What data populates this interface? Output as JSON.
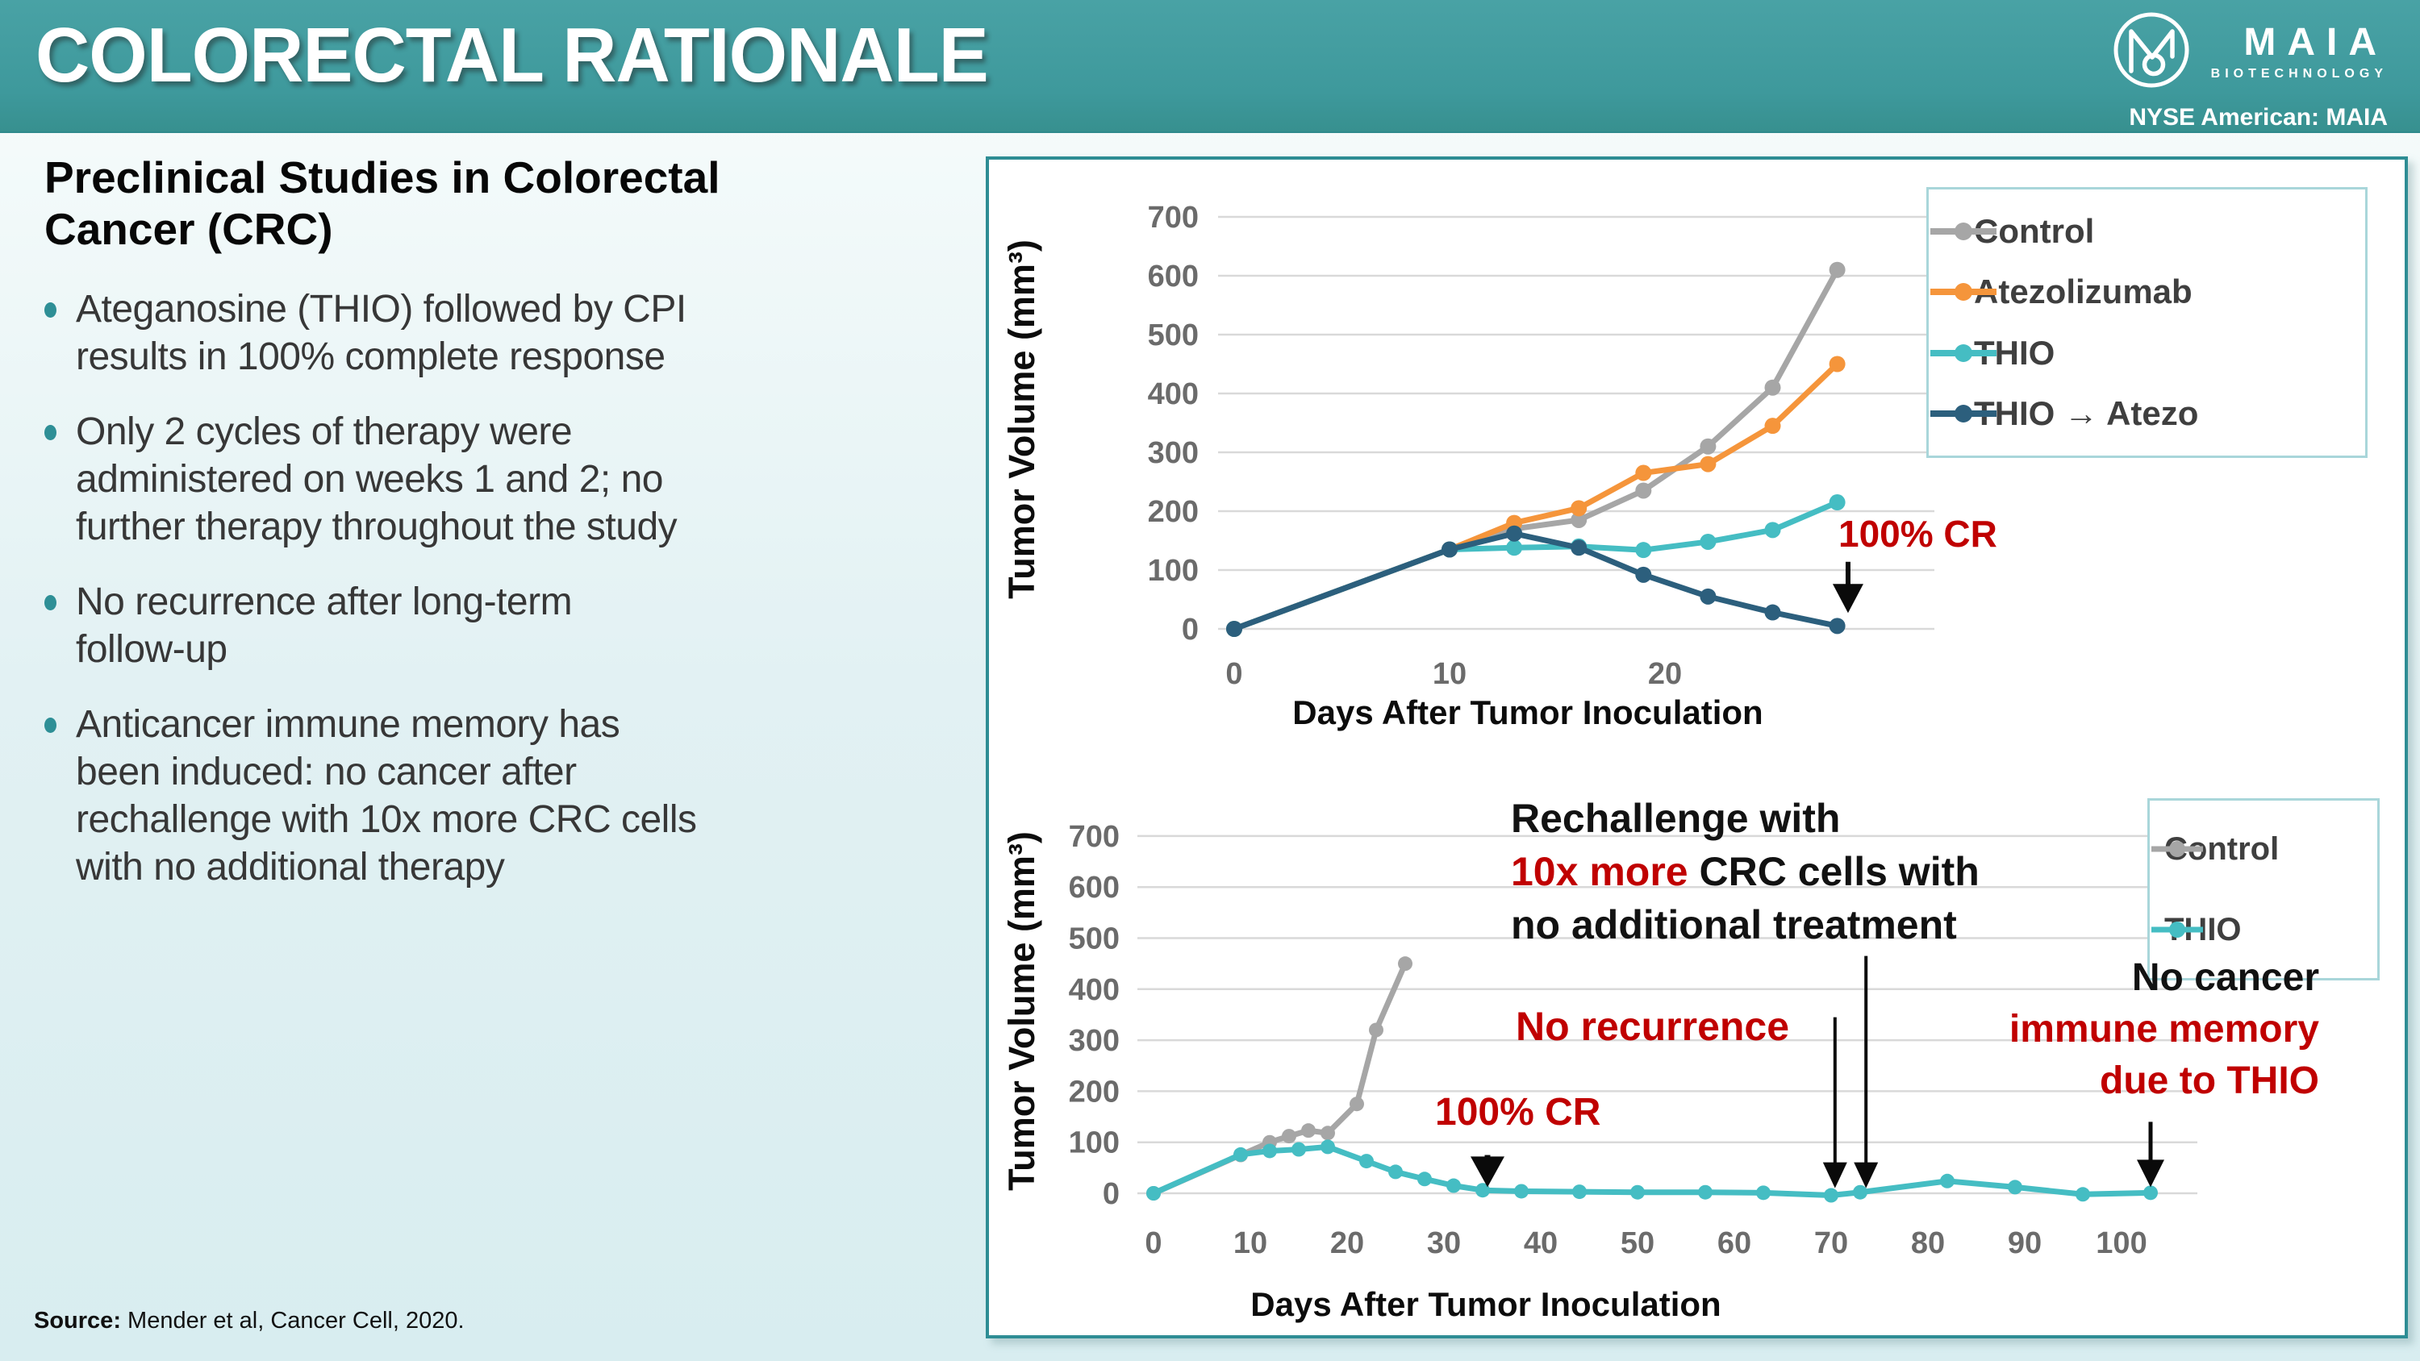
{
  "slide": {
    "title": "COLORECTAL RATIONALE",
    "ticker": "NYSE American: MAIA"
  },
  "logo": {
    "brand": "MAIA",
    "sub": "BIOTECHNOLOGY",
    "monogram_icon": "maia-m-icon"
  },
  "left_panel": {
    "heading": "Preclinical Studies in Colorectal\nCancer (CRC)",
    "bullets": [
      "Ateganosine (THIO) followed by CPI\nresults in 100% complete response",
      "Only 2 cycles of therapy were\nadministered on weeks 1 and 2; no\nfurther therapy throughout the study",
      "No recurrence after long-term\nfollow-up",
      "Anticancer immune memory has\nbeen induced: no cancer after\nrechallenge with 10x more CRC cells\nwith no additional therapy"
    ]
  },
  "source": {
    "label": "Source:",
    "text": " Mender et al, Cancer Cell, 2020."
  },
  "colors": {
    "banner_teal": "#3E999C",
    "accent_teal": "#2E8D94",
    "annotation_red": "#C00000",
    "control_gray": "#A6A6A6",
    "atezolizumab_orange": "#F5953B",
    "thio_teal": "#45BDC3",
    "thio_atezo_navy": "#2C5F7D",
    "grid_gray": "#D9D9D9"
  },
  "chart_data": [
    {
      "type": "line",
      "title": "",
      "xlabel": "Days After Tumor Inoculation",
      "ylabel": "Tumor Volume (mm³)",
      "xlim": [
        0,
        32
      ],
      "ylim": [
        0,
        700
      ],
      "x_ticks": [
        0,
        10,
        20
      ],
      "y_ticks": [
        0,
        100,
        200,
        300,
        400,
        500,
        600,
        700
      ],
      "grid": "horizontal",
      "legend_position": "top-right",
      "series": [
        {
          "name": "Control",
          "color": "#A6A6A6",
          "x": [
            0,
            10,
            13,
            16,
            19,
            22,
            25,
            28
          ],
          "y": [
            0,
            135,
            170,
            185,
            235,
            310,
            410,
            610
          ]
        },
        {
          "name": "Atezolizumab",
          "color": "#F5953B",
          "x": [
            0,
            10,
            13,
            16,
            19,
            22,
            25,
            28
          ],
          "y": [
            0,
            135,
            180,
            205,
            265,
            280,
            345,
            450
          ]
        },
        {
          "name": "THIO",
          "color": "#45BDC3",
          "x": [
            0,
            10,
            13,
            16,
            19,
            22,
            25,
            28
          ],
          "y": [
            0,
            135,
            138,
            140,
            134,
            148,
            168,
            215
          ]
        },
        {
          "name": "THIO → Atezo",
          "color": "#2C5F7D",
          "x": [
            0,
            10,
            13,
            16,
            19,
            22,
            25,
            28
          ],
          "y": [
            0,
            135,
            162,
            138,
            92,
            55,
            28,
            5
          ]
        }
      ],
      "annotations": [
        {
          "lines": [
            [
              {
                "t": "100% CR",
                "c": "#C00000"
              }
            ]
          ],
          "arrow": {
            "day": 28.5,
            "from": 114,
            "to": 27,
            "w": 6
          }
        }
      ]
    },
    {
      "type": "line",
      "title": "",
      "xlabel": "Days After Tumor Inoculation",
      "ylabel": "Tumor Volume (mm³)",
      "xlim": [
        0,
        107
      ],
      "ylim": [
        0,
        700
      ],
      "x_ticks": [
        0,
        10,
        20,
        30,
        40,
        50,
        60,
        70,
        80,
        90,
        100
      ],
      "y_ticks": [
        0,
        100,
        200,
        300,
        400,
        500,
        600,
        700
      ],
      "grid": "horizontal",
      "legend_position": "top-right",
      "series": [
        {
          "name": "Control",
          "color": "#A6A6A6",
          "x": [
            0,
            9,
            12,
            14,
            16,
            18,
            21,
            23,
            26
          ],
          "y": [
            0,
            75,
            100,
            112,
            123,
            118,
            175,
            320,
            450
          ]
        },
        {
          "name": "THIO",
          "color": "#45BDC3",
          "x": [
            0,
            9,
            12,
            15,
            18,
            22,
            25,
            28,
            31,
            34,
            38,
            44,
            50,
            57,
            63,
            70,
            73,
            82,
            89,
            96,
            103
          ],
          "y": [
            0,
            76,
            83,
            86,
            91,
            63,
            42,
            28,
            15,
            6,
            4,
            3,
            2,
            2,
            1,
            -4,
            2,
            24,
            12,
            -2,
            1
          ]
        }
      ],
      "annotations": [
        {
          "lines": [
            [
              {
                "t": "100% CR",
                "c": "#C00000"
              }
            ]
          ],
          "arrow": {
            "day": 34.5,
            "from": 75,
            "to": 12,
            "w": 7
          }
        },
        {
          "lines": [
            [
              {
                "t": "No recurrence",
                "c": "#C00000"
              }
            ]
          ],
          "arrow": {
            "day": 70.4,
            "from": 345,
            "to": 10,
            "w": 4
          }
        },
        {
          "lines": [
            [
              {
                "t": "Rechallenge with",
                "c": "#121212"
              }
            ],
            [
              {
                "t": "10x more ",
                "c": "#C00000"
              },
              {
                "t": "CRC cells with",
                "c": "#121212"
              }
            ],
            [
              {
                "t": "no additional treatment",
                "c": "#121212"
              }
            ]
          ],
          "arrow": {
            "day": 73.6,
            "from": 465,
            "to": 10,
            "w": 4
          }
        },
        {
          "lines": [
            [
              {
                "t": "No cancer",
                "c": "#121212"
              }
            ],
            [
              {
                "t": "immune memory",
                "c": "#C00000"
              }
            ],
            [
              {
                "t": "due to THIO",
                "c": "#C00000"
              }
            ]
          ],
          "arrow": {
            "day": 103,
            "from": 140,
            "to": 12,
            "w": 5
          }
        }
      ]
    }
  ]
}
